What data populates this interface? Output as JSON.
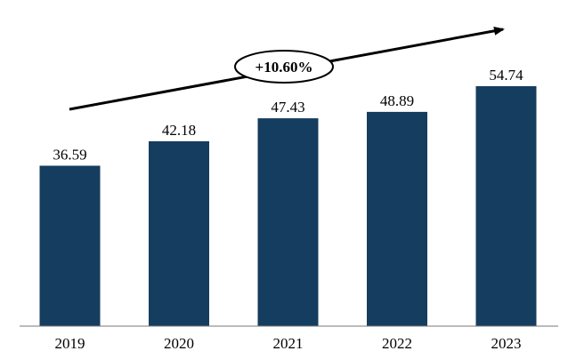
{
  "chart_data": {
    "type": "bar",
    "categories": [
      "2019",
      "2020",
      "2021",
      "2022",
      "2023"
    ],
    "values": [
      36.59,
      42.18,
      47.43,
      48.89,
      54.74
    ],
    "value_labels": [
      "36.59",
      "42.18",
      "47.43",
      "48.89",
      "54.74"
    ],
    "title": "",
    "xlabel": "",
    "ylabel": "",
    "ylim": [
      0,
      60
    ],
    "grid": false,
    "legend": "none",
    "bar_color": "#153d5f",
    "annotation": {
      "text": "+10.60%",
      "type": "growth-arrow"
    }
  }
}
